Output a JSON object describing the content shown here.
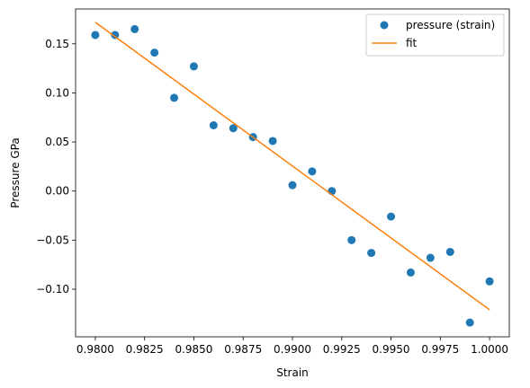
{
  "chart_data": {
    "type": "scatter",
    "title": "",
    "xlabel": "Strain",
    "ylabel": "Pressure GPa",
    "xlim": [
      0.979,
      1.001
    ],
    "ylim": [
      -0.1485,
      0.1855
    ],
    "xticks": [
      0.98,
      0.9825,
      0.985,
      0.9875,
      0.99,
      0.9925,
      0.995,
      0.9975,
      1.0
    ],
    "xtick_labels": [
      "0.9800",
      "0.9825",
      "0.9850",
      "0.9875",
      "0.9900",
      "0.9925",
      "0.9950",
      "0.9975",
      "1.0000"
    ],
    "yticks": [
      -0.1,
      -0.05,
      0.0,
      0.05,
      0.1,
      0.15
    ],
    "ytick_labels": [
      "−0.10",
      "−0.05",
      "0.00",
      "0.05",
      "0.10",
      "0.15"
    ],
    "grid": false,
    "legend_position": "top-right",
    "series": [
      {
        "name": "pressure (strain)",
        "kind": "points",
        "color": "#1f77b4",
        "x": [
          0.98,
          0.981,
          0.982,
          0.983,
          0.984,
          0.985,
          0.986,
          0.987,
          0.988,
          0.989,
          0.99,
          0.991,
          0.992,
          0.993,
          0.994,
          0.995,
          0.996,
          0.997,
          0.998,
          0.999,
          1.0
        ],
        "y": [
          0.159,
          0.159,
          0.165,
          0.141,
          0.095,
          0.127,
          0.067,
          0.064,
          0.055,
          0.051,
          0.006,
          0.02,
          0.0,
          -0.05,
          -0.063,
          -0.026,
          -0.083,
          -0.068,
          -0.062,
          -0.134,
          -0.092
        ]
      },
      {
        "name": "fit",
        "kind": "line",
        "color": "#ff7f0e",
        "x": [
          0.98,
          1.0
        ],
        "y": [
          0.172,
          -0.121
        ]
      }
    ]
  }
}
